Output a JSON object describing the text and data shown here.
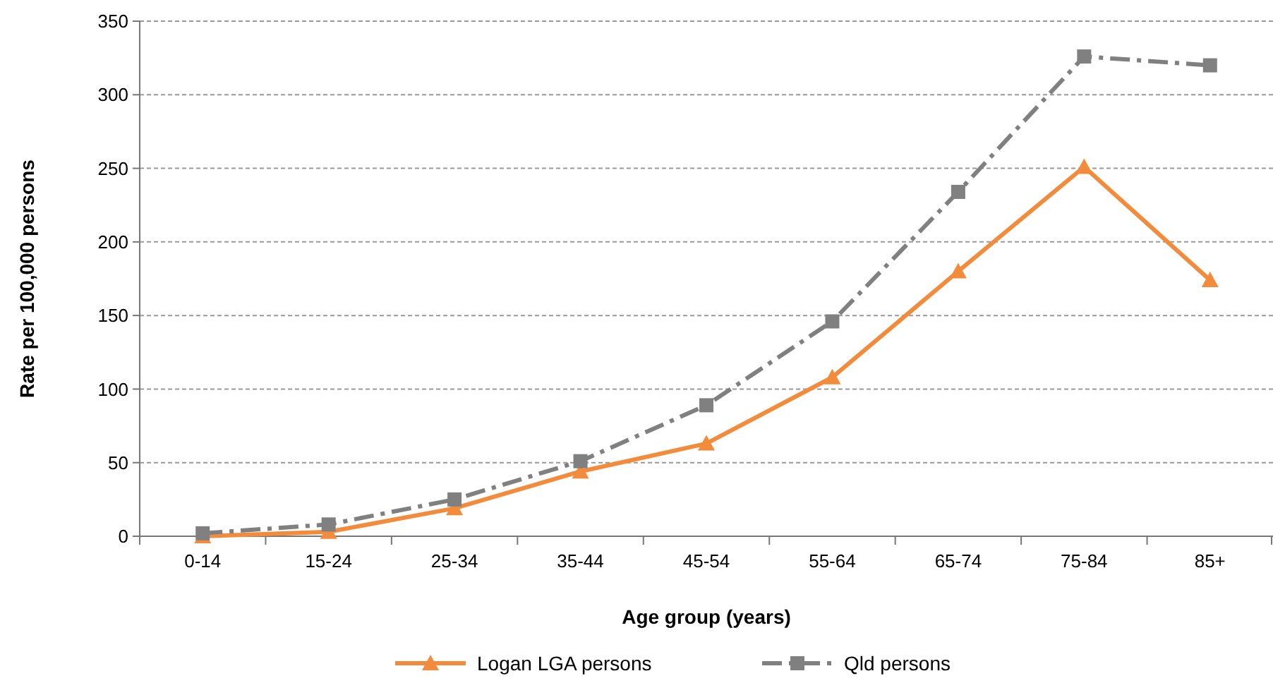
{
  "chart_data": {
    "type": "line",
    "xlabel": "Age group (years)",
    "ylabel": "Rate per 100,000 persons",
    "categories": [
      "0-14",
      "15-24",
      "25-34",
      "35-44",
      "45-54",
      "55-64",
      "65-74",
      "75-84",
      "85+"
    ],
    "series": [
      {
        "name": "Logan LGA persons",
        "color": "#f28c3c",
        "marker": "triangle",
        "line_style": "solid",
        "values": [
          0,
          3,
          19,
          44,
          63,
          108,
          180,
          251,
          174
        ]
      },
      {
        "name": "Qld persons",
        "color": "#808080",
        "marker": "square",
        "line_style": "dashed",
        "values": [
          2,
          8,
          25,
          51,
          89,
          146,
          234,
          326,
          320
        ]
      }
    ],
    "ylim": [
      0,
      350
    ],
    "yticks": [
      0,
      50,
      100,
      150,
      200,
      250,
      300,
      350
    ],
    "grid": "y",
    "legend": "bottom"
  }
}
